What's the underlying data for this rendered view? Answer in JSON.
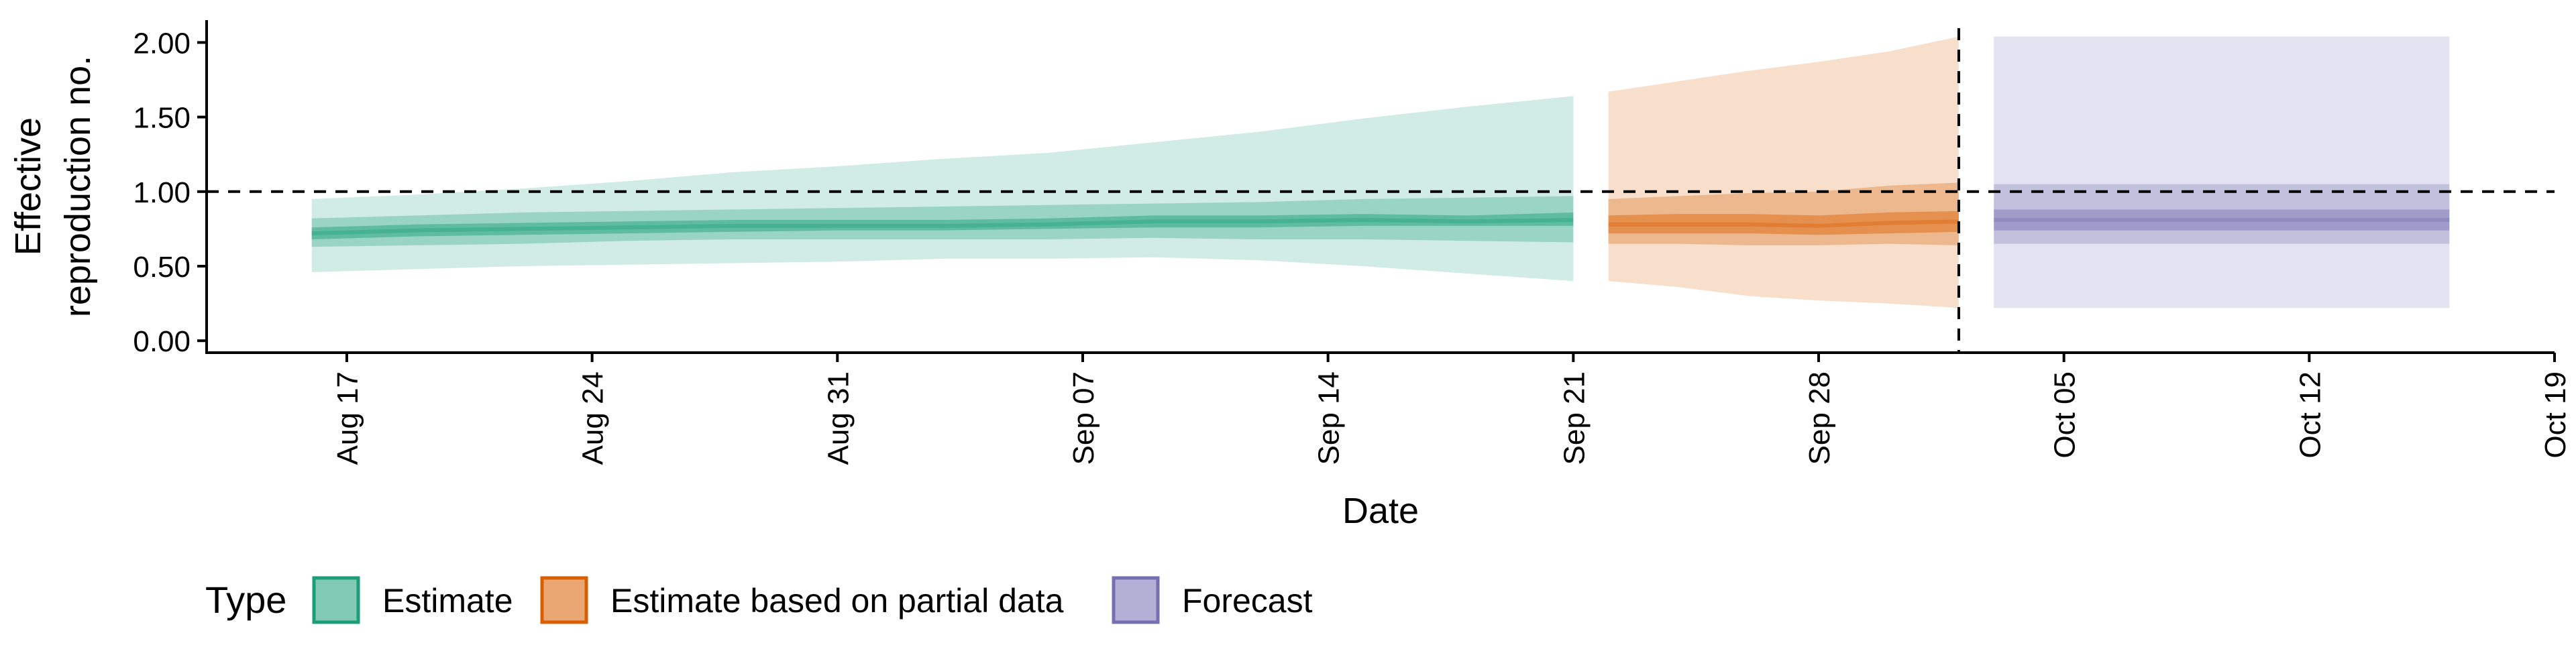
{
  "chart_data": {
    "type": "area",
    "title": "",
    "xlabel": "Date",
    "ylabel": "Effective reproduction no.",
    "ylabel_lines": [
      "Effective",
      "reproduction no."
    ],
    "x_ticks": [
      "Aug 17",
      "Aug 24",
      "Aug 31",
      "Sep 07",
      "Sep 14",
      "Sep 21",
      "Sep 28",
      "Oct 05",
      "Oct 12",
      "Oct 19"
    ],
    "x_tick_dates": [
      "2020-08-17",
      "2020-08-24",
      "2020-08-31",
      "2020-09-07",
      "2020-09-14",
      "2020-09-21",
      "2020-09-28",
      "2020-10-05",
      "2020-10-12",
      "2020-10-19"
    ],
    "xlim": [
      "2020-08-13",
      "2020-10-19"
    ],
    "y_ticks": [
      "0.00",
      "0.50",
      "1.00",
      "1.50",
      "2.00"
    ],
    "ylim": [
      -0.08,
      2.15
    ],
    "reference_hline": 1.0,
    "reference_vline": "2020-10-02",
    "grid": false,
    "legend": {
      "title": "Type",
      "position": "bottom",
      "items": [
        {
          "label": "Estimate",
          "color": "#1b9e77"
        },
        {
          "label": "Estimate based on partial data",
          "color": "#d95f02"
        },
        {
          "label": "Forecast",
          "color": "#7570b3"
        }
      ]
    },
    "series": [
      {
        "name": "Estimate",
        "color": "#1b9e77",
        "x": [
          "2020-08-16",
          "2020-08-19",
          "2020-08-22",
          "2020-08-25",
          "2020-08-28",
          "2020-08-31",
          "2020-09-03",
          "2020-09-06",
          "2020-09-09",
          "2020-09-12",
          "2020-09-15",
          "2020-09-18",
          "2020-09-21"
        ],
        "median": [
          0.72,
          0.74,
          0.75,
          0.76,
          0.77,
          0.77,
          0.77,
          0.78,
          0.8,
          0.8,
          0.81,
          0.8,
          0.81
        ],
        "lower_20": [
          0.68,
          0.7,
          0.71,
          0.72,
          0.73,
          0.74,
          0.74,
          0.75,
          0.76,
          0.76,
          0.77,
          0.77,
          0.77
        ],
        "upper_20": [
          0.76,
          0.78,
          0.79,
          0.8,
          0.81,
          0.81,
          0.81,
          0.82,
          0.84,
          0.84,
          0.85,
          0.84,
          0.86
        ],
        "lower_50": [
          0.63,
          0.64,
          0.65,
          0.67,
          0.68,
          0.68,
          0.68,
          0.68,
          0.69,
          0.68,
          0.68,
          0.67,
          0.66
        ],
        "upper_50": [
          0.82,
          0.84,
          0.86,
          0.87,
          0.88,
          0.89,
          0.9,
          0.91,
          0.92,
          0.93,
          0.95,
          0.96,
          0.97
        ],
        "lower_90": [
          0.46,
          0.48,
          0.5,
          0.51,
          0.52,
          0.53,
          0.55,
          0.55,
          0.56,
          0.54,
          0.5,
          0.45,
          0.4
        ],
        "upper_90": [
          0.95,
          0.98,
          1.02,
          1.07,
          1.13,
          1.17,
          1.22,
          1.26,
          1.33,
          1.4,
          1.49,
          1.57,
          1.64
        ]
      },
      {
        "name": "Estimate based on partial data",
        "color": "#d95f02",
        "x": [
          "2020-09-22",
          "2020-09-24",
          "2020-09-26",
          "2020-09-28",
          "2020-09-30",
          "2020-10-02"
        ],
        "median": [
          0.78,
          0.78,
          0.78,
          0.77,
          0.79,
          0.8
        ],
        "lower_20": [
          0.72,
          0.72,
          0.72,
          0.71,
          0.72,
          0.73
        ],
        "upper_20": [
          0.84,
          0.85,
          0.85,
          0.84,
          0.86,
          0.87
        ],
        "lower_50": [
          0.65,
          0.65,
          0.64,
          0.64,
          0.65,
          0.64
        ],
        "upper_50": [
          0.95,
          0.97,
          0.99,
          1.0,
          1.04,
          1.06
        ],
        "lower_90": [
          0.4,
          0.36,
          0.3,
          0.27,
          0.25,
          0.22
        ],
        "upper_90": [
          1.67,
          1.74,
          1.81,
          1.87,
          1.94,
          2.04
        ]
      },
      {
        "name": "Forecast",
        "color": "#7570b3",
        "x": [
          "2020-10-03",
          "2020-10-16"
        ],
        "median": [
          0.81,
          0.81
        ],
        "lower_20": [
          0.74,
          0.74
        ],
        "upper_20": [
          0.88,
          0.88
        ],
        "lower_50": [
          0.65,
          0.65
        ],
        "upper_50": [
          1.05,
          1.05
        ],
        "lower_90": [
          0.22,
          0.22
        ],
        "upper_90": [
          2.04,
          2.04
        ]
      }
    ]
  }
}
